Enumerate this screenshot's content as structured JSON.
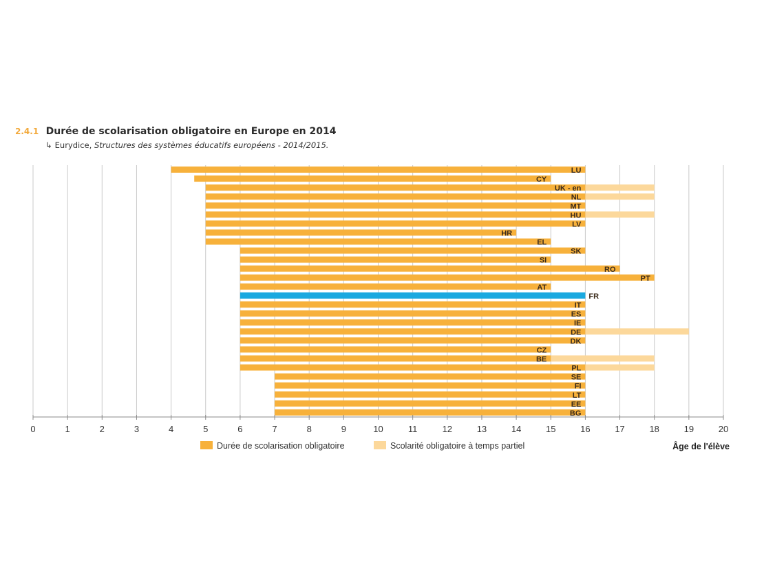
{
  "header": {
    "figure_number": "2.4.1",
    "title": "Durée de scolarisation obligatoire en Europe en 2014",
    "source_icon": "source-arrow-icon",
    "source_arrow_glyph": "↳",
    "source_plain": "Eurydice, ",
    "source_italic": "Structures des systèmes éducatifs européens - 2014/2015."
  },
  "colors": {
    "full_time": "#f7b13b",
    "part_time": "#fcd89b",
    "highlight": "#1aa9e0",
    "grid": "#c9c9c9",
    "axis": "#8a8a8a",
    "figure_number": "#f2a93b"
  },
  "chart_data": {
    "type": "bar",
    "orientation": "horizontal",
    "title": "Durée de scolarisation obligatoire en Europe en 2014",
    "xlabel": "Âge de l'élève",
    "ylabel": "",
    "xlim": [
      0,
      20
    ],
    "xticks": [
      "0",
      "1",
      "2",
      "3",
      "4",
      "5",
      "6",
      "7",
      "8",
      "9",
      "10",
      "11",
      "12",
      "13",
      "14",
      "15",
      "16",
      "17",
      "18",
      "19",
      "20"
    ],
    "grid": true,
    "legend_position": "bottom",
    "legend": [
      {
        "key": "full",
        "label": "Durée de scolarisation obligatoire"
      },
      {
        "key": "partial",
        "label": "Scolarité obligatoire à temps partiel"
      }
    ],
    "highlight_country": "FR",
    "bars": [
      {
        "country": "LU",
        "start": 4,
        "end": 16,
        "partial_end": null
      },
      {
        "country": "CY",
        "start": 4.67,
        "end": 15,
        "partial_end": null
      },
      {
        "country": "UK - en",
        "start": 5,
        "end": 16,
        "partial_end": 18
      },
      {
        "country": "NL",
        "start": 5,
        "end": 16,
        "partial_end": 18
      },
      {
        "country": "MT",
        "start": 5,
        "end": 16,
        "partial_end": null
      },
      {
        "country": "HU",
        "start": 5,
        "end": 16,
        "partial_end": 18
      },
      {
        "country": "LV",
        "start": 5,
        "end": 16,
        "partial_end": null
      },
      {
        "country": "HR",
        "start": 5,
        "end": 14,
        "partial_end": null
      },
      {
        "country": "EL",
        "start": 5,
        "end": 15,
        "partial_end": null
      },
      {
        "country": "SK",
        "start": 6,
        "end": 16,
        "partial_end": null
      },
      {
        "country": "SI",
        "start": 6,
        "end": 15,
        "partial_end": null
      },
      {
        "country": "RO",
        "start": 6,
        "end": 17,
        "partial_end": null
      },
      {
        "country": "PT",
        "start": 6,
        "end": 18,
        "partial_end": null
      },
      {
        "country": "AT",
        "start": 6,
        "end": 15,
        "partial_end": null
      },
      {
        "country": "FR",
        "start": 6,
        "end": 16,
        "partial_end": null
      },
      {
        "country": "IT",
        "start": 6,
        "end": 16,
        "partial_end": null
      },
      {
        "country": "ES",
        "start": 6,
        "end": 16,
        "partial_end": null
      },
      {
        "country": "IE",
        "start": 6,
        "end": 16,
        "partial_end": null
      },
      {
        "country": "DE",
        "start": 6,
        "end": 16,
        "partial_end": 19
      },
      {
        "country": "DK",
        "start": 6,
        "end": 16,
        "partial_end": null
      },
      {
        "country": "CZ",
        "start": 6,
        "end": 15,
        "partial_end": null
      },
      {
        "country": "BE",
        "start": 6,
        "end": 15,
        "partial_end": 18
      },
      {
        "country": "PL",
        "start": 6,
        "end": 16,
        "partial_end": 18
      },
      {
        "country": "SE",
        "start": 7,
        "end": 16,
        "partial_end": null
      },
      {
        "country": "FI",
        "start": 7,
        "end": 16,
        "partial_end": null
      },
      {
        "country": "LT",
        "start": 7,
        "end": 16,
        "partial_end": null
      },
      {
        "country": "EE",
        "start": 7,
        "end": 16,
        "partial_end": null
      },
      {
        "country": "BG",
        "start": 7,
        "end": 16,
        "partial_end": null
      }
    ]
  }
}
